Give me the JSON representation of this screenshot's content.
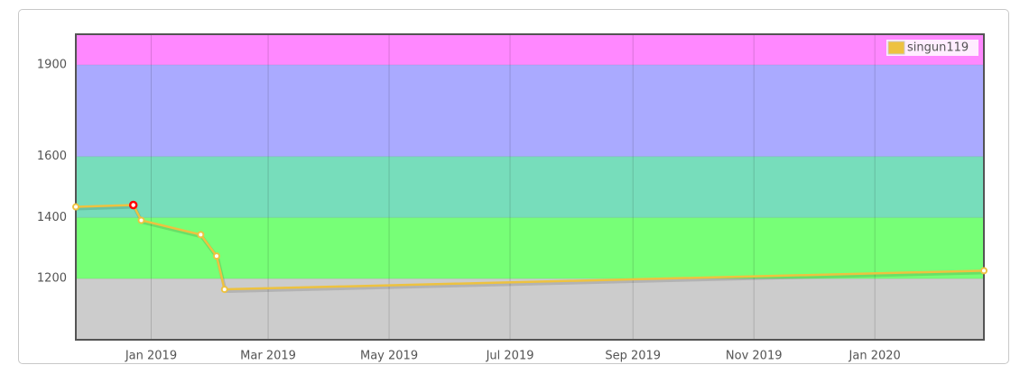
{
  "chart_data": {
    "type": "line",
    "x": [
      "2018-11-24",
      "2018-12-23",
      "2018-12-27",
      "2019-01-26",
      "2019-02-03",
      "2019-02-07",
      "2020-02-25"
    ],
    "series": [
      {
        "name": "singun119",
        "color": "#edc240",
        "values": [
          1435,
          1441,
          1391,
          1344,
          1274,
          1165,
          1226
        ]
      }
    ],
    "highlight_point": 1,
    "highlight_color": "#ff0000",
    "xlim": [
      "2018-11-24",
      "2020-02-25"
    ],
    "xticks": [
      {
        "value": "2019-01-01",
        "label": "Jan 2019"
      },
      {
        "value": "2019-03-01",
        "label": "Mar 2019"
      },
      {
        "value": "2019-05-01",
        "label": "May 2019"
      },
      {
        "value": "2019-07-01",
        "label": "Jul 2019"
      },
      {
        "value": "2019-09-01",
        "label": "Sep 2019"
      },
      {
        "value": "2019-11-01",
        "label": "Nov 2019"
      },
      {
        "value": "2020-01-01",
        "label": "Jan 2020"
      }
    ],
    "ylim": [
      1000,
      2000
    ],
    "yticks": [
      1200,
      1400,
      1600,
      1900
    ],
    "bands": [
      {
        "from": 1000,
        "to": 1200,
        "color": "#cccccc"
      },
      {
        "from": 1200,
        "to": 1400,
        "color": "#77ff77"
      },
      {
        "from": 1400,
        "to": 1600,
        "color": "#77ddbb"
      },
      {
        "from": 1600,
        "to": 1900,
        "color": "#aaaaff"
      },
      {
        "from": 1900,
        "to": 2000,
        "color": "#ff88ff"
      }
    ],
    "grid": true,
    "legend_position": "top-right"
  }
}
